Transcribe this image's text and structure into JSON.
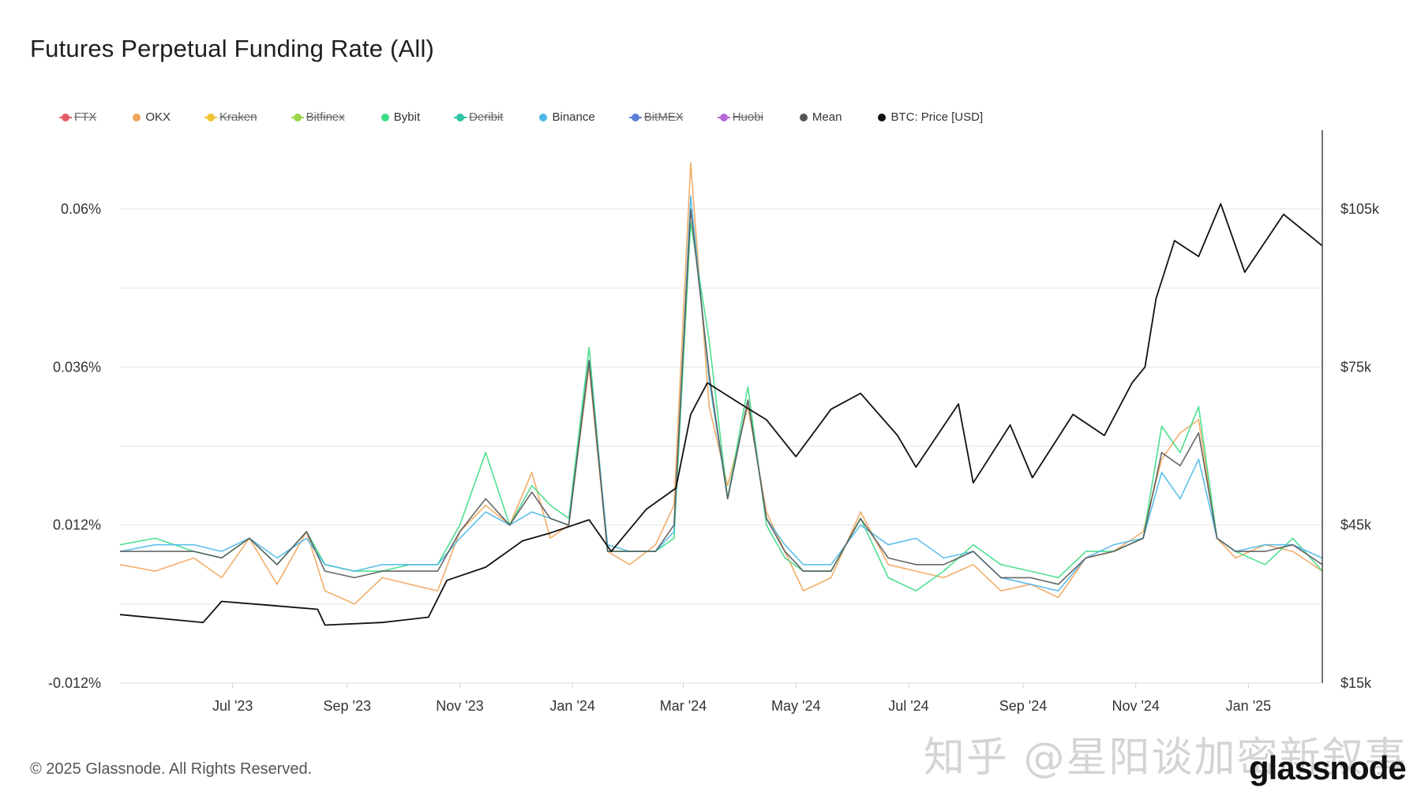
{
  "title": "Futures Perpetual Funding Rate (All)",
  "copyright": "© 2025 Glassnode. All Rights Reserved.",
  "watermark": "知乎 @星阳谈加密新叙事",
  "brand": "glassnode",
  "legend": [
    {
      "name": "FTX",
      "color": "#e35d6a",
      "disabled": true
    },
    {
      "name": "OKX",
      "color": "#f0a55a",
      "disabled": false
    },
    {
      "name": "Kraken",
      "color": "#f2c230",
      "disabled": true
    },
    {
      "name": "Bitfinex",
      "color": "#9bd64a",
      "disabled": true
    },
    {
      "name": "Bybit",
      "color": "#3ddc84",
      "disabled": false
    },
    {
      "name": "Deribit",
      "color": "#2cc4a4",
      "disabled": true
    },
    {
      "name": "Binance",
      "color": "#4db8e8",
      "disabled": false
    },
    {
      "name": "BitMEX",
      "color": "#5b7fd4",
      "disabled": true
    },
    {
      "name": "Huobi",
      "color": "#b46ad6",
      "disabled": true
    },
    {
      "name": "Mean",
      "color": "#555555",
      "disabled": false
    },
    {
      "name": "BTC: Price [USD]",
      "color": "#111111",
      "disabled": false
    }
  ],
  "chart_data": {
    "type": "line",
    "title": "Futures Perpetual Funding Rate (All)",
    "x_ticks": [
      "Jul '23",
      "Sep '23",
      "Nov '23",
      "Jan '24",
      "Mar '24",
      "May '24",
      "Jul '24",
      "Sep '24",
      "Nov '24",
      "Jan '25"
    ],
    "y_left_ticks": [
      "0.06%",
      "0.036%",
      "0.012%",
      "-0.012%"
    ],
    "y_left_range": [
      -0.012,
      0.06
    ],
    "y_right_ticks": [
      "$105k",
      "$75k",
      "$45k",
      "$15k"
    ],
    "y_right_range": [
      15000,
      105000
    ],
    "x_range": [
      "2023-05-01",
      "2025-02-10"
    ],
    "grid": true,
    "legend_position": "top",
    "series": [
      {
        "name": "OKX",
        "axis": "left",
        "x": [
          "2023-05-01",
          "2023-05-20",
          "2023-06-10",
          "2023-06-25",
          "2023-07-10",
          "2023-07-25",
          "2023-08-10",
          "2023-08-20",
          "2023-09-05",
          "2023-09-20",
          "2023-10-05",
          "2023-10-20",
          "2023-11-01",
          "2023-11-15",
          "2023-11-28",
          "2023-12-10",
          "2023-12-20",
          "2023-12-30",
          "2024-01-10",
          "2024-01-20",
          "2024-02-01",
          "2024-02-15",
          "2024-02-25",
          "2024-03-05",
          "2024-03-15",
          "2024-03-25",
          "2024-04-05",
          "2024-04-15",
          "2024-04-25",
          "2024-05-05",
          "2024-05-20",
          "2024-06-05",
          "2024-06-20",
          "2024-07-05",
          "2024-07-20",
          "2024-08-05",
          "2024-08-20",
          "2024-09-05",
          "2024-09-20",
          "2024-10-05",
          "2024-10-20",
          "2024-11-05",
          "2024-11-15",
          "2024-11-25",
          "2024-12-05",
          "2024-12-15",
          "2024-12-25",
          "2025-01-10",
          "2025-01-25",
          "2025-02-10"
        ],
        "y": [
          0.006,
          0.005,
          0.007,
          0.004,
          0.01,
          0.003,
          0.011,
          0.002,
          0.0,
          0.004,
          0.003,
          0.002,
          0.011,
          0.015,
          0.012,
          0.02,
          0.01,
          0.012,
          0.036,
          0.008,
          0.006,
          0.009,
          0.015,
          0.067,
          0.03,
          0.018,
          0.03,
          0.014,
          0.008,
          0.002,
          0.004,
          0.014,
          0.006,
          0.005,
          0.004,
          0.006,
          0.002,
          0.003,
          0.001,
          0.007,
          0.008,
          0.011,
          0.022,
          0.026,
          0.028,
          0.01,
          0.007,
          0.009,
          0.008,
          0.005
        ]
      },
      {
        "name": "Bybit",
        "axis": "left",
        "x": [
          "2023-05-01",
          "2023-05-20",
          "2023-06-10",
          "2023-06-25",
          "2023-07-10",
          "2023-07-25",
          "2023-08-10",
          "2023-08-20",
          "2023-09-05",
          "2023-09-20",
          "2023-10-05",
          "2023-10-20",
          "2023-11-01",
          "2023-11-15",
          "2023-11-28",
          "2023-12-10",
          "2023-12-20",
          "2023-12-30",
          "2024-01-10",
          "2024-01-20",
          "2024-02-01",
          "2024-02-15",
          "2024-02-25",
          "2024-03-05",
          "2024-03-15",
          "2024-03-25",
          "2024-04-05",
          "2024-04-15",
          "2024-04-25",
          "2024-05-05",
          "2024-05-20",
          "2024-06-05",
          "2024-06-20",
          "2024-07-05",
          "2024-07-20",
          "2024-08-05",
          "2024-08-20",
          "2024-09-05",
          "2024-09-20",
          "2024-10-05",
          "2024-10-20",
          "2024-11-05",
          "2024-11-15",
          "2024-11-25",
          "2024-12-05",
          "2024-12-15",
          "2024-12-25",
          "2025-01-10",
          "2025-01-25",
          "2025-02-10"
        ],
        "y": [
          0.009,
          0.01,
          0.008,
          0.007,
          0.01,
          0.006,
          0.011,
          0.006,
          0.005,
          0.005,
          0.006,
          0.006,
          0.012,
          0.023,
          0.012,
          0.018,
          0.015,
          0.013,
          0.039,
          0.008,
          0.008,
          0.008,
          0.01,
          0.058,
          0.04,
          0.016,
          0.033,
          0.012,
          0.007,
          0.005,
          0.005,
          0.013,
          0.004,
          0.002,
          0.005,
          0.009,
          0.006,
          0.005,
          0.004,
          0.008,
          0.008,
          0.01,
          0.027,
          0.023,
          0.03,
          0.01,
          0.008,
          0.006,
          0.01,
          0.005
        ]
      },
      {
        "name": "Binance",
        "axis": "left",
        "x": [
          "2023-05-01",
          "2023-05-20",
          "2023-06-10",
          "2023-06-25",
          "2023-07-10",
          "2023-07-25",
          "2023-08-10",
          "2023-08-20",
          "2023-09-05",
          "2023-09-20",
          "2023-10-05",
          "2023-10-20",
          "2023-11-01",
          "2023-11-15",
          "2023-11-28",
          "2023-12-10",
          "2023-12-20",
          "2023-12-30",
          "2024-01-10",
          "2024-01-20",
          "2024-02-01",
          "2024-02-15",
          "2024-02-25",
          "2024-03-05",
          "2024-03-15",
          "2024-03-25",
          "2024-04-05",
          "2024-04-15",
          "2024-04-25",
          "2024-05-05",
          "2024-05-20",
          "2024-06-05",
          "2024-06-20",
          "2024-07-05",
          "2024-07-20",
          "2024-08-05",
          "2024-08-20",
          "2024-09-05",
          "2024-09-20",
          "2024-10-05",
          "2024-10-20",
          "2024-11-05",
          "2024-11-15",
          "2024-11-25",
          "2024-12-05",
          "2024-12-15",
          "2024-12-25",
          "2025-01-10",
          "2025-01-25",
          "2025-02-10"
        ],
        "y": [
          0.008,
          0.009,
          0.009,
          0.008,
          0.01,
          0.007,
          0.01,
          0.006,
          0.005,
          0.006,
          0.006,
          0.006,
          0.01,
          0.014,
          0.012,
          0.014,
          0.013,
          0.012,
          0.037,
          0.009,
          0.008,
          0.008,
          0.011,
          0.062,
          0.034,
          0.016,
          0.031,
          0.013,
          0.009,
          0.006,
          0.006,
          0.012,
          0.009,
          0.01,
          0.007,
          0.008,
          0.004,
          0.003,
          0.002,
          0.007,
          0.009,
          0.01,
          0.02,
          0.016,
          0.022,
          0.01,
          0.008,
          0.009,
          0.009,
          0.007
        ]
      },
      {
        "name": "Mean",
        "axis": "left",
        "x": [
          "2023-05-01",
          "2023-05-20",
          "2023-06-10",
          "2023-06-25",
          "2023-07-10",
          "2023-07-25",
          "2023-08-10",
          "2023-08-20",
          "2023-09-05",
          "2023-09-20",
          "2023-10-05",
          "2023-10-20",
          "2023-11-01",
          "2023-11-15",
          "2023-11-28",
          "2023-12-10",
          "2023-12-20",
          "2023-12-30",
          "2024-01-10",
          "2024-01-20",
          "2024-02-01",
          "2024-02-15",
          "2024-02-25",
          "2024-03-05",
          "2024-03-15",
          "2024-03-25",
          "2024-04-05",
          "2024-04-15",
          "2024-04-25",
          "2024-05-05",
          "2024-05-20",
          "2024-06-05",
          "2024-06-20",
          "2024-07-05",
          "2024-07-20",
          "2024-08-05",
          "2024-08-20",
          "2024-09-05",
          "2024-09-20",
          "2024-10-05",
          "2024-10-20",
          "2024-11-05",
          "2024-11-15",
          "2024-11-25",
          "2024-12-05",
          "2024-12-15",
          "2024-12-25",
          "2025-01-10",
          "2025-01-25",
          "2025-02-10"
        ],
        "y": [
          0.008,
          0.008,
          0.008,
          0.007,
          0.01,
          0.006,
          0.011,
          0.005,
          0.004,
          0.005,
          0.005,
          0.005,
          0.011,
          0.016,
          0.012,
          0.017,
          0.013,
          0.012,
          0.037,
          0.008,
          0.008,
          0.008,
          0.012,
          0.06,
          0.035,
          0.016,
          0.031,
          0.013,
          0.008,
          0.005,
          0.005,
          0.013,
          0.007,
          0.006,
          0.006,
          0.008,
          0.004,
          0.004,
          0.003,
          0.007,
          0.008,
          0.01,
          0.023,
          0.021,
          0.026,
          0.01,
          0.008,
          0.008,
          0.009,
          0.006
        ]
      },
      {
        "name": "BTC: Price [USD]",
        "axis": "right",
        "x": [
          "2023-05-01",
          "2023-06-15",
          "2023-06-25",
          "2023-07-20",
          "2023-08-16",
          "2023-08-20",
          "2023-09-20",
          "2023-10-15",
          "2023-10-25",
          "2023-11-15",
          "2023-12-05",
          "2023-12-20",
          "2024-01-10",
          "2024-01-22",
          "2024-02-10",
          "2024-02-26",
          "2024-03-05",
          "2024-03-14",
          "2024-04-01",
          "2024-04-15",
          "2024-05-01",
          "2024-05-20",
          "2024-06-05",
          "2024-06-25",
          "2024-07-05",
          "2024-07-28",
          "2024-08-05",
          "2024-08-25",
          "2024-09-06",
          "2024-09-28",
          "2024-10-15",
          "2024-10-30",
          "2024-11-06",
          "2024-11-12",
          "2024-11-22",
          "2024-12-05",
          "2024-12-17",
          "2024-12-30",
          "2025-01-20",
          "2025-02-10"
        ],
        "y": [
          28000,
          26500,
          30500,
          29800,
          29000,
          26000,
          26500,
          27500,
          34500,
          37000,
          42000,
          43500,
          46000,
          40000,
          48000,
          52000,
          66000,
          72000,
          68000,
          65000,
          58000,
          67000,
          70000,
          62000,
          56000,
          68000,
          53000,
          64000,
          54000,
          66000,
          62000,
          72000,
          75000,
          88000,
          99000,
          96000,
          106000,
          93000,
          104000,
          98000
        ]
      }
    ]
  }
}
